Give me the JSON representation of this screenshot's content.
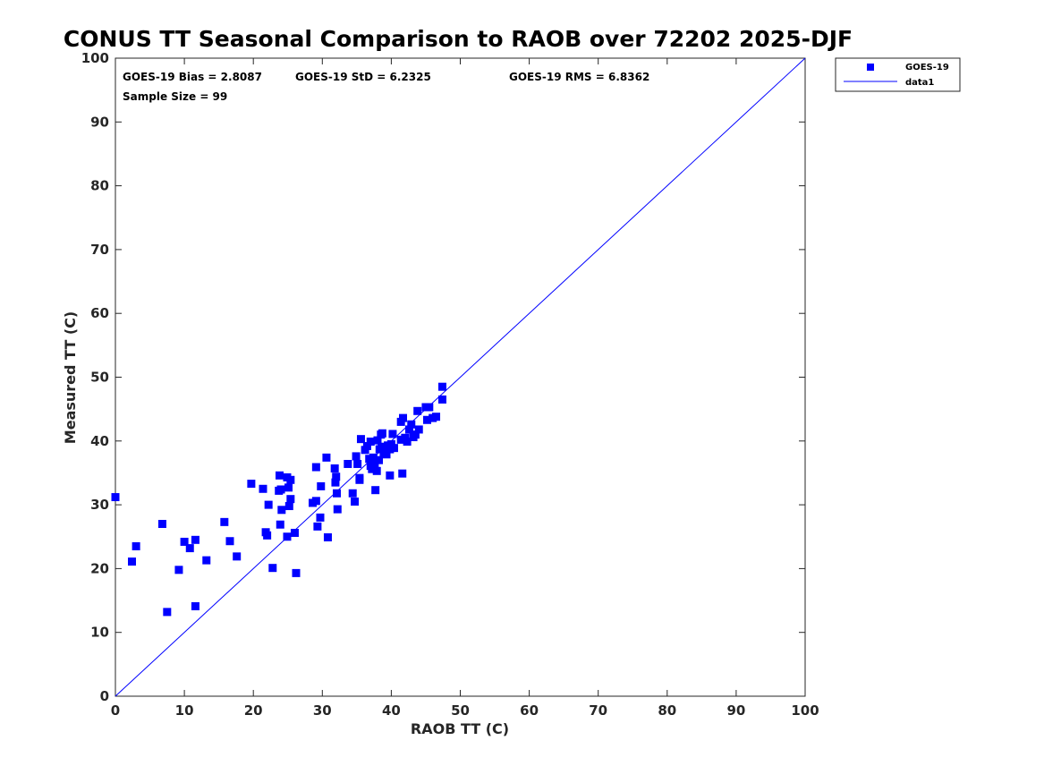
{
  "chart_data": {
    "type": "scatter",
    "title": "CONUS TT Seasonal Comparison to RAOB over 72202 2025-DJF",
    "xlabel": "RAOB TT (C)",
    "ylabel": "Measured TT (C)",
    "xlim": [
      0,
      100
    ],
    "ylim": [
      0,
      100
    ],
    "xticks": [
      0,
      10,
      20,
      30,
      40,
      50,
      60,
      70,
      80,
      90,
      100
    ],
    "yticks": [
      0,
      10,
      20,
      30,
      40,
      50,
      60,
      70,
      80,
      90,
      100
    ],
    "grid": false,
    "legend_position": "top-right",
    "annotations": {
      "bias": "GOES-19 Bias = 2.8087",
      "std": "GOES-19 StD = 6.2325",
      "rms": "GOES-19 RMS = 6.8362",
      "sample": "Sample Size = 99"
    },
    "colors": {
      "marker": "#0000ff",
      "line": "#0000ff"
    },
    "series": [
      {
        "name": "GOES-19",
        "kind": "scatter",
        "points": [
          [
            0,
            31.2
          ],
          [
            2.4,
            21.1
          ],
          [
            3.0,
            23.5
          ],
          [
            6.8,
            27.0
          ],
          [
            7.5,
            13.2
          ],
          [
            9.2,
            19.8
          ],
          [
            10.0,
            24.2
          ],
          [
            10.8,
            23.2
          ],
          [
            11.6,
            24.5
          ],
          [
            11.6,
            14.1
          ],
          [
            13.2,
            21.3
          ],
          [
            15.8,
            27.3
          ],
          [
            16.6,
            24.3
          ],
          [
            17.6,
            21.9
          ],
          [
            19.7,
            33.3
          ],
          [
            21.4,
            32.5
          ],
          [
            21.8,
            25.7
          ],
          [
            22.0,
            25.2
          ],
          [
            22.2,
            30.0
          ],
          [
            22.8,
            20.1
          ],
          [
            23.7,
            32.2
          ],
          [
            23.8,
            34.6
          ],
          [
            23.9,
            26.9
          ],
          [
            24.0,
            32.4
          ],
          [
            24.1,
            29.2
          ],
          [
            24.9,
            34.3
          ],
          [
            24.9,
            25.0
          ],
          [
            25.1,
            32.7
          ],
          [
            25.2,
            29.8
          ],
          [
            25.4,
            30.9
          ],
          [
            25.4,
            33.9
          ],
          [
            26.0,
            25.6
          ],
          [
            26.2,
            19.3
          ],
          [
            28.6,
            30.3
          ],
          [
            29.1,
            30.6
          ],
          [
            29.1,
            35.9
          ],
          [
            29.3,
            26.6
          ],
          [
            29.7,
            28.0
          ],
          [
            29.8,
            32.9
          ],
          [
            30.6,
            37.4
          ],
          [
            30.8,
            24.9
          ],
          [
            31.8,
            35.7
          ],
          [
            31.9,
            33.5
          ],
          [
            32.0,
            34.4
          ],
          [
            32.1,
            31.8
          ],
          [
            32.2,
            29.3
          ],
          [
            33.7,
            36.4
          ],
          [
            34.4,
            31.8
          ],
          [
            34.7,
            30.5
          ],
          [
            34.9,
            37.6
          ],
          [
            35.1,
            36.4
          ],
          [
            35.4,
            33.9
          ],
          [
            35.4,
            34.2
          ],
          [
            35.6,
            40.3
          ],
          [
            36.2,
            38.6
          ],
          [
            36.8,
            37.2
          ],
          [
            37.0,
            39.9
          ],
          [
            37.0,
            36.1
          ],
          [
            37.2,
            35.6
          ],
          [
            37.4,
            37.4
          ],
          [
            37.6,
            36.3
          ],
          [
            37.7,
            32.3
          ],
          [
            37.9,
            35.3
          ],
          [
            38.0,
            40.1
          ],
          [
            38.2,
            37.0
          ],
          [
            38.3,
            38.7
          ],
          [
            38.5,
            41.0
          ],
          [
            38.7,
            41.2
          ],
          [
            38.9,
            38.0
          ],
          [
            39.2,
            38.6
          ],
          [
            39.5,
            39.3
          ],
          [
            39.8,
            38.7
          ],
          [
            39.8,
            34.6
          ],
          [
            40.0,
            39.5
          ],
          [
            40.2,
            41.1
          ],
          [
            41.4,
            40.2
          ],
          [
            41.4,
            43.0
          ],
          [
            41.7,
            43.6
          ],
          [
            41.6,
            34.9
          ],
          [
            42.0,
            40.5
          ],
          [
            42.3,
            39.9
          ],
          [
            42.6,
            41.8
          ],
          [
            42.9,
            42.6
          ],
          [
            43.2,
            40.6
          ],
          [
            43.5,
            41.0
          ],
          [
            43.8,
            44.7
          ],
          [
            44.0,
            41.8
          ],
          [
            45.0,
            45.3
          ],
          [
            45.2,
            43.3
          ],
          [
            45.5,
            45.3
          ],
          [
            46.0,
            43.6
          ],
          [
            46.5,
            43.8
          ],
          [
            47.4,
            46.5
          ],
          [
            47.4,
            48.5
          ],
          [
            36.5,
            39.2
          ],
          [
            38.6,
            39.1
          ],
          [
            39.3,
            37.9
          ],
          [
            40.4,
            38.9
          ],
          [
            37.3,
            36.8
          ]
        ]
      },
      {
        "name": "data1",
        "kind": "line",
        "points": [
          [
            0,
            0
          ],
          [
            100,
            100
          ]
        ]
      }
    ]
  }
}
